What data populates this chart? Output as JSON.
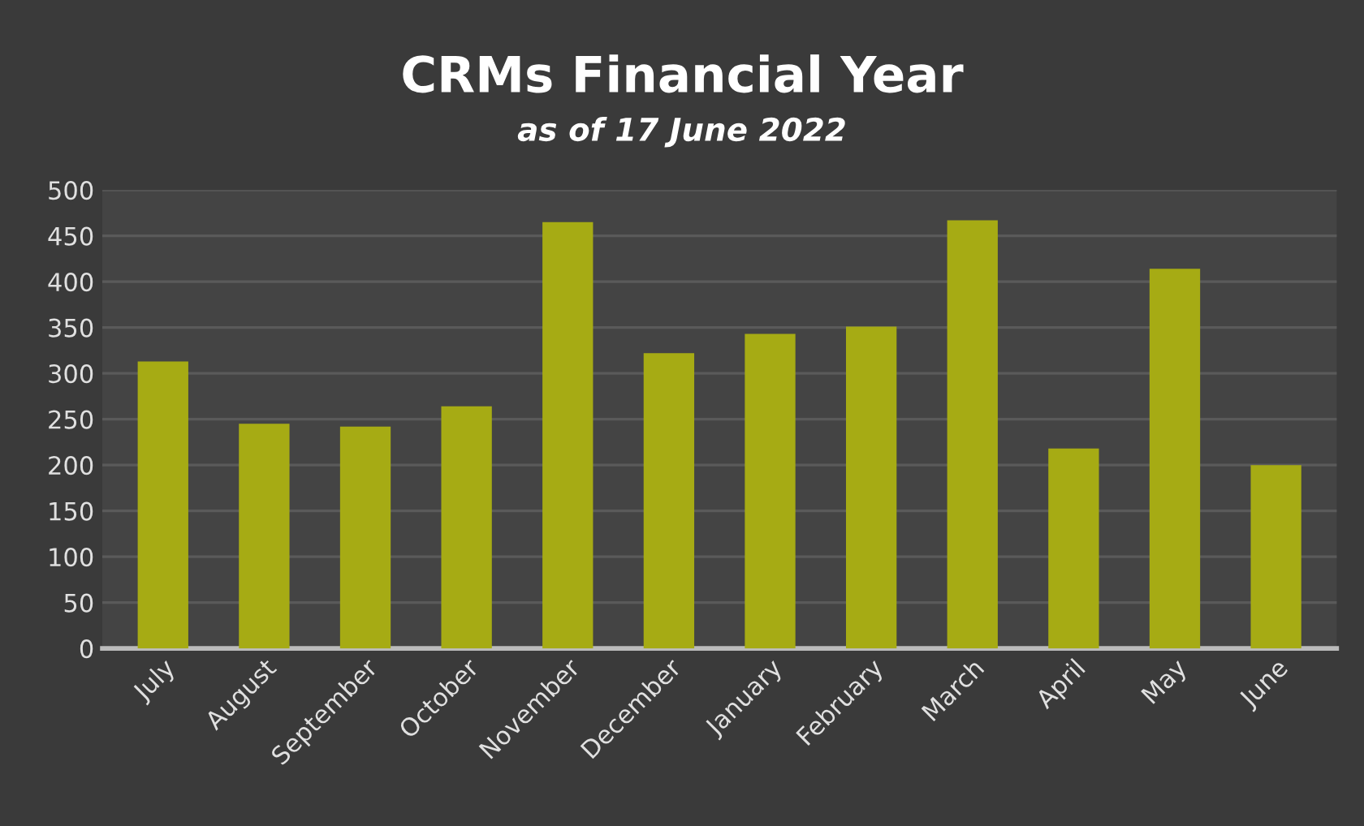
{
  "chart_data": {
    "type": "bar",
    "title": "CRMs Financial Year",
    "subtitle": "as of 17 June 2022",
    "categories": [
      "July",
      "August",
      "September",
      "October",
      "November",
      "December",
      "January",
      "February",
      "March",
      "April",
      "May",
      "June"
    ],
    "values": [
      313,
      245,
      242,
      264,
      465,
      322,
      343,
      351,
      467,
      218,
      414,
      200
    ],
    "color": "#a6ab14",
    "ylim": [
      0,
      500
    ],
    "yticks": [
      0,
      50,
      100,
      150,
      200,
      250,
      300,
      350,
      400,
      450,
      500
    ],
    "grid": "y",
    "legend": false
  }
}
